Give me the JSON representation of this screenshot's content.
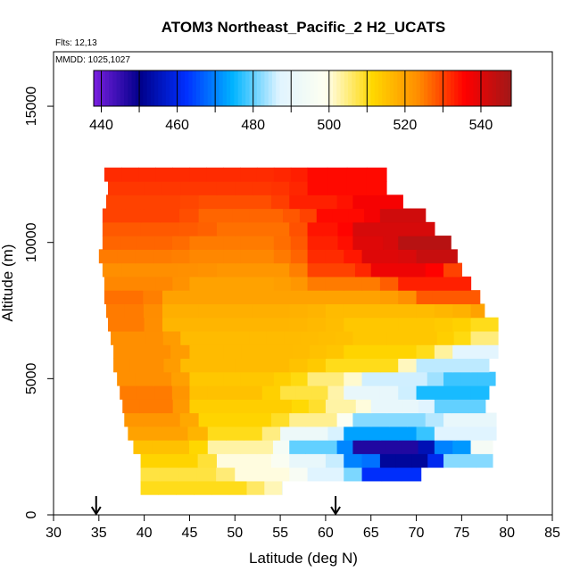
{
  "chart_data": {
    "type": "heatmap",
    "title": "ATOM3 Northeast_Pacific_2 H2_UCATS",
    "notes": [
      "Flts: 12,13",
      "MMDD: 1025,1027"
    ],
    "xlabel": "Latitude (deg N)",
    "ylabel": "Altitude (m)",
    "xlim": [
      30,
      85
    ],
    "ylim": [
      0,
      17000
    ],
    "x_ticks": [
      30,
      35,
      40,
      45,
      50,
      55,
      60,
      65,
      70,
      75,
      80,
      85
    ],
    "x_tick_labels": [
      "30",
      "35",
      "40",
      "45",
      "50",
      "55",
      "60",
      "65",
      "70",
      "75",
      "80",
      "85"
    ],
    "y_ticks": [
      0,
      5000,
      10000,
      15000
    ],
    "y_tick_labels": [
      "0",
      "5000",
      "10000",
      "15000"
    ],
    "grid": false,
    "colorbar": {
      "min": 438,
      "max": 548,
      "tick_values": [
        440,
        460,
        480,
        500,
        520,
        540
      ],
      "tick_labels": [
        "440",
        "460",
        "480",
        "500",
        "520",
        "540"
      ],
      "colors": [
        "#7a1fe0",
        "#00008a",
        "#0030ff",
        "#00b4ff",
        "#e0f4ff",
        "#fffff0",
        "#ffd800",
        "#ff8c00",
        "#ff0000",
        "#a01818"
      ]
    },
    "arrows_at_latitude": [
      34.7,
      61.1
    ],
    "rows": [
      {
        "alt": 1000,
        "segments": [
          [
            39.6,
            55.2,
            510
          ],
          [
            55.2,
            55.2,
            490
          ]
        ]
      },
      {
        "alt": 1500,
        "segments": [
          [
            39.6,
            50,
            508
          ],
          [
            50,
            58,
            500
          ],
          [
            58,
            64,
            487
          ],
          [
            64,
            70.5,
            462
          ]
        ]
      },
      {
        "alt": 2000,
        "segments": [
          [
            39.6,
            48,
            512
          ],
          [
            48,
            56,
            500
          ],
          [
            56,
            62,
            490
          ],
          [
            62,
            66,
            470
          ],
          [
            66,
            73,
            452
          ],
          [
            73,
            78.4,
            482
          ]
        ]
      },
      {
        "alt": 2500,
        "segments": [
          [
            38.8,
            47,
            515
          ],
          [
            47,
            56,
            503
          ],
          [
            56,
            63,
            480
          ],
          [
            63,
            72,
            447
          ],
          [
            72,
            76,
            470
          ],
          [
            76,
            78.4,
            495
          ]
        ]
      },
      {
        "alt": 3000,
        "segments": [
          [
            38.2,
            47,
            520
          ],
          [
            47,
            55,
            510
          ],
          [
            55,
            62,
            492
          ],
          [
            62,
            72,
            473
          ],
          [
            72,
            78.8,
            487
          ]
        ]
      },
      {
        "alt": 3500,
        "segments": [
          [
            37.8,
            46,
            522
          ],
          [
            46,
            56,
            512
          ],
          [
            56,
            63,
            504
          ],
          [
            63,
            73,
            482
          ],
          [
            73,
            78.8,
            490
          ]
        ]
      },
      {
        "alt": 4000,
        "segments": [
          [
            37.6,
            45,
            525
          ],
          [
            45,
            60,
            513
          ],
          [
            60,
            65,
            503
          ],
          [
            65,
            72,
            490
          ],
          [
            72,
            77.6,
            480
          ]
        ]
      },
      {
        "alt": 4500,
        "segments": [
          [
            37.3,
            45,
            525
          ],
          [
            45,
            55,
            515
          ],
          [
            55,
            62,
            508
          ],
          [
            62,
            70,
            490
          ],
          [
            70,
            78,
            476
          ]
        ]
      },
      {
        "alt": 5000,
        "segments": [
          [
            37,
            45,
            523
          ],
          [
            45,
            58,
            514
          ],
          [
            58,
            64,
            505
          ],
          [
            64,
            73,
            486
          ],
          [
            73,
            78.7,
            478
          ]
        ]
      },
      {
        "alt": 5500,
        "segments": [
          [
            36.6,
            44,
            523
          ],
          [
            44,
            60,
            516
          ],
          [
            60,
            70,
            510
          ],
          [
            70,
            78,
            485
          ]
        ]
      },
      {
        "alt": 6000,
        "segments": [
          [
            36.6,
            45,
            523
          ],
          [
            45,
            62,
            516
          ],
          [
            62,
            74,
            512
          ],
          [
            74,
            79,
            488
          ]
        ]
      },
      {
        "alt": 6500,
        "segments": [
          [
            36.3,
            44,
            523
          ],
          [
            44,
            63,
            516
          ],
          [
            63,
            76,
            514
          ],
          [
            76,
            79,
            505
          ]
        ]
      },
      {
        "alt": 7000,
        "segments": [
          [
            36,
            42,
            525
          ],
          [
            42,
            62,
            517
          ],
          [
            62,
            76,
            514
          ],
          [
            76,
            79,
            510
          ]
        ]
      },
      {
        "alt": 7500,
        "segments": [
          [
            35.8,
            42,
            525
          ],
          [
            42,
            60,
            518
          ],
          [
            60,
            76,
            516
          ],
          [
            76,
            77.5,
            520
          ]
        ]
      },
      {
        "alt": 8000,
        "segments": [
          [
            35.6,
            42,
            526
          ],
          [
            42,
            58,
            520
          ],
          [
            58,
            70,
            520
          ],
          [
            70,
            77,
            528
          ]
        ]
      },
      {
        "alt": 8500,
        "segments": [
          [
            35.6,
            45,
            524
          ],
          [
            45,
            58,
            520
          ],
          [
            58,
            68,
            525
          ],
          [
            68,
            76,
            533
          ]
        ]
      },
      {
        "alt": 9000,
        "segments": [
          [
            35.4,
            48,
            523
          ],
          [
            48,
            58,
            522
          ],
          [
            58,
            65,
            530
          ],
          [
            65,
            73,
            538
          ],
          [
            73,
            75,
            530
          ]
        ]
      },
      {
        "alt": 9500,
        "segments": [
          [
            35,
            45,
            525
          ],
          [
            45,
            58,
            524
          ],
          [
            58,
            64,
            532
          ],
          [
            64,
            70,
            540
          ],
          [
            70,
            74.5,
            543
          ]
        ]
      },
      {
        "alt": 10000,
        "segments": [
          [
            35.4,
            45,
            527
          ],
          [
            45,
            58,
            525
          ],
          [
            58,
            63,
            533
          ],
          [
            63,
            68,
            540
          ],
          [
            68,
            73.8,
            545
          ]
        ]
      },
      {
        "alt": 10500,
        "segments": [
          [
            35.4,
            48,
            528
          ],
          [
            48,
            58,
            526
          ],
          [
            58,
            63,
            534
          ],
          [
            63,
            72,
            541
          ]
        ]
      },
      {
        "alt": 11000,
        "segments": [
          [
            35.4,
            46,
            530
          ],
          [
            46,
            59,
            527
          ],
          [
            59,
            66,
            535
          ],
          [
            66,
            71,
            542
          ]
        ]
      },
      {
        "alt": 11500,
        "segments": [
          [
            35.8,
            46,
            530
          ],
          [
            46,
            56,
            529
          ],
          [
            56,
            63,
            533
          ],
          [
            63,
            68.5,
            537
          ]
        ]
      },
      {
        "alt": 12000,
        "segments": [
          [
            36,
            46,
            531
          ],
          [
            46,
            58,
            531
          ],
          [
            58,
            66.7,
            535
          ]
        ]
      },
      {
        "alt": 12500,
        "segments": [
          [
            35.6,
            45,
            532
          ],
          [
            45,
            58,
            532
          ],
          [
            58,
            66.7,
            535
          ]
        ]
      }
    ]
  }
}
